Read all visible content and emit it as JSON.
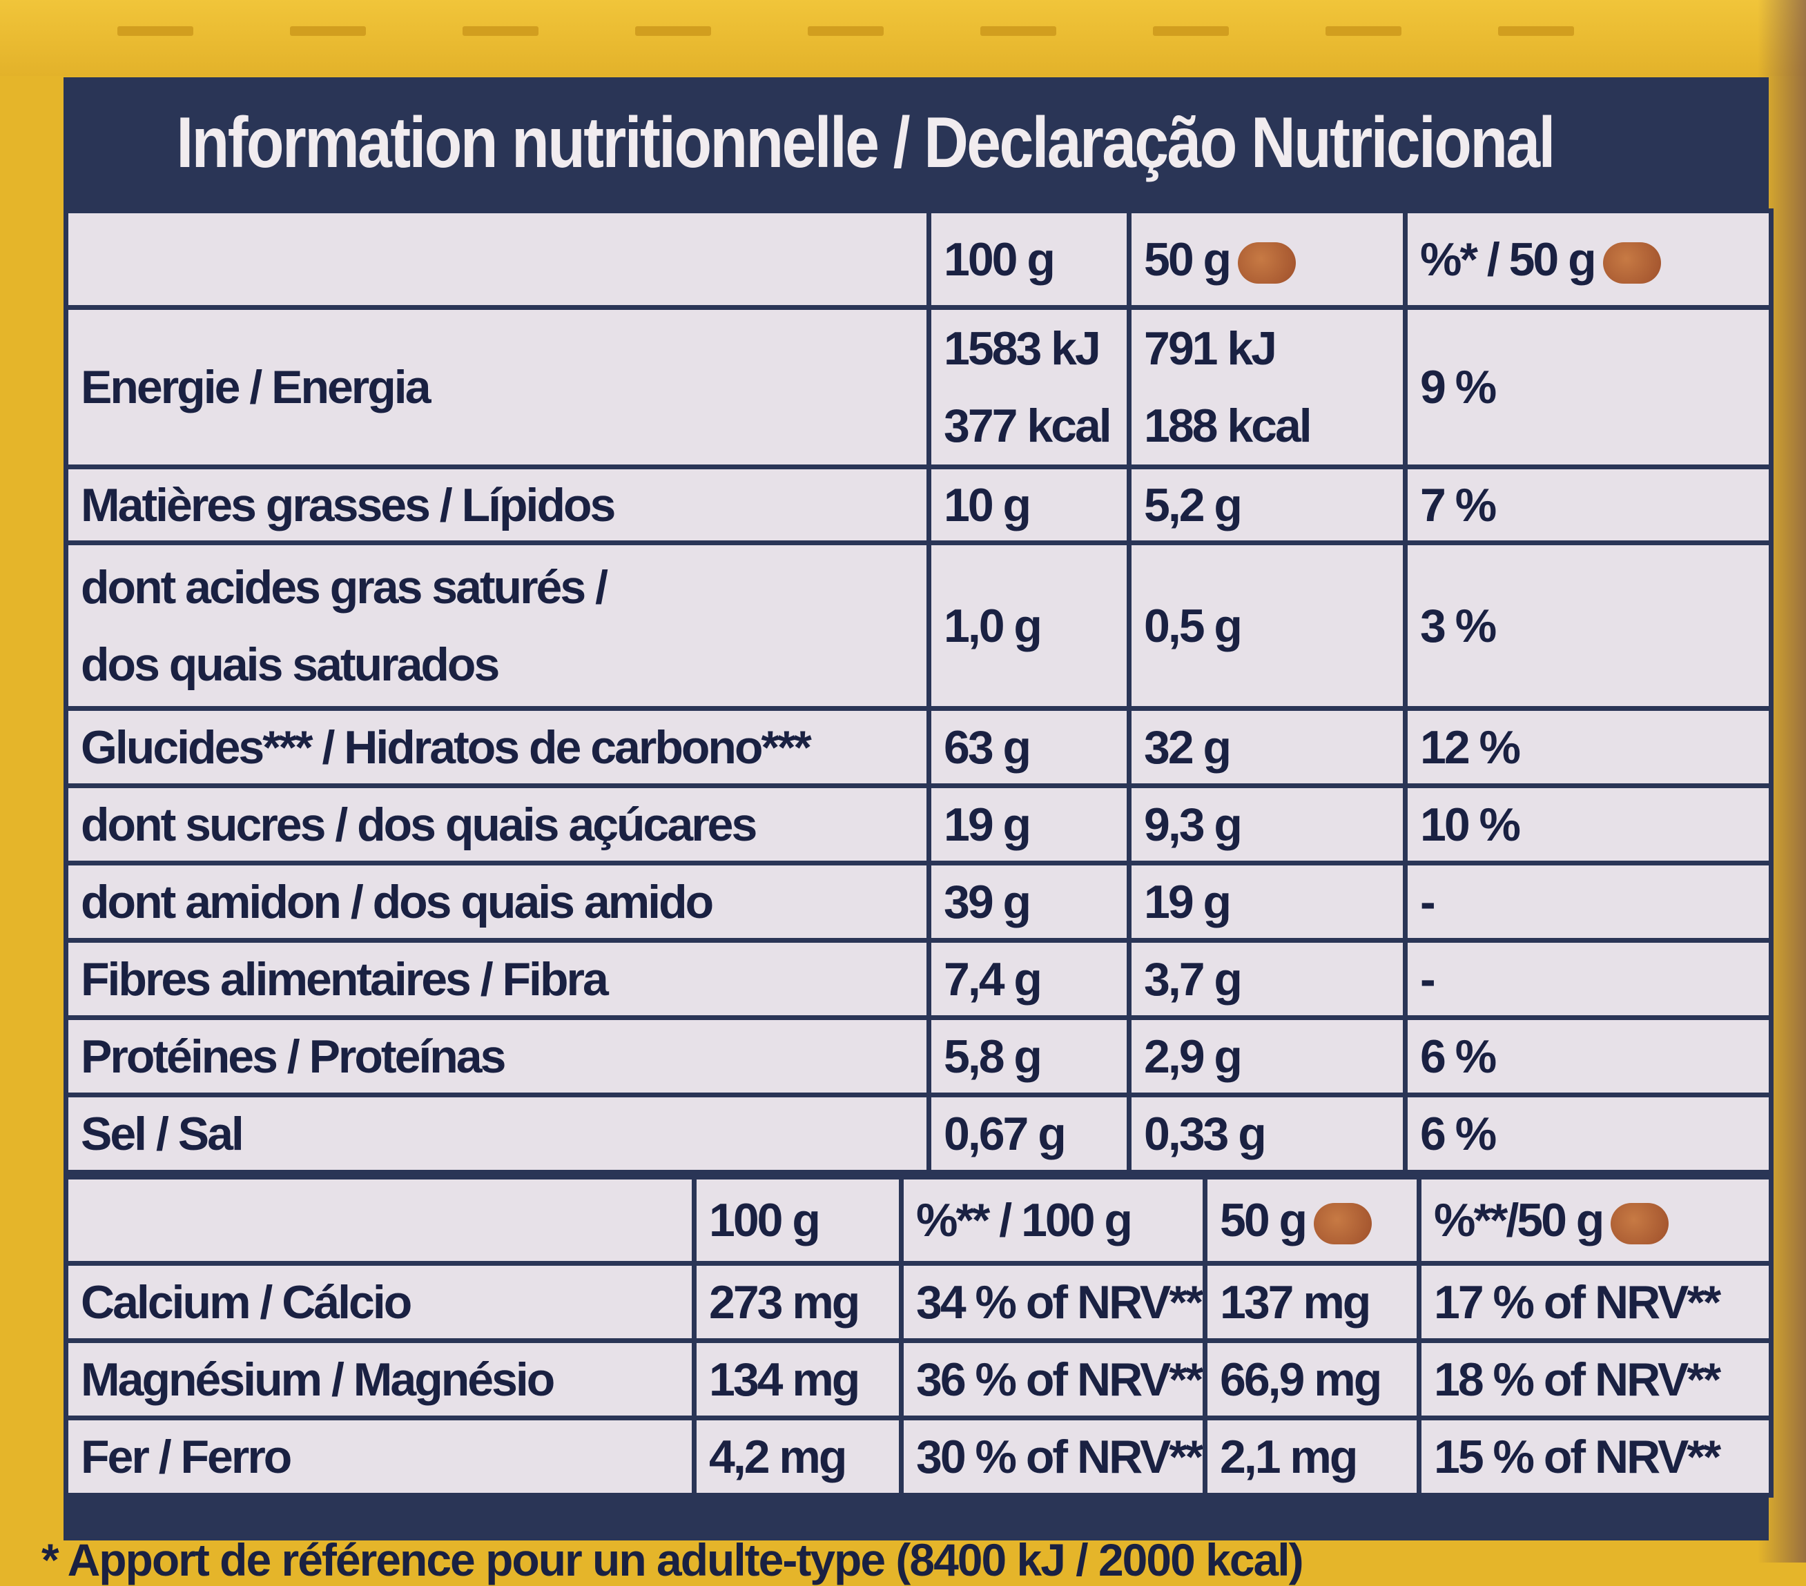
{
  "title": "Information nutritionnelle / Declaração Nutricional",
  "columns": {
    "per100": "100 g",
    "per50": "50 g",
    "pct50": "%* / 50 g"
  },
  "rows": [
    {
      "label": "Energie / Energia",
      "v100_line1": "1583 kJ",
      "v100_line2": "377 kcal",
      "v50_line1": "791 kJ",
      "v50_line2": "188 kcal",
      "pct": "9 %"
    },
    {
      "label": "Matières grasses / Lípidos",
      "v100": "10 g",
      "v50": "5,2 g",
      "pct": "7 %"
    },
    {
      "label_line1": "dont acides gras saturés /",
      "label_line2": "dos quais saturados",
      "v100": "1,0 g",
      "v50": "0,5 g",
      "pct": "3 %"
    },
    {
      "label": "Glucides*** / Hidratos de carbono***",
      "v100": "63 g",
      "v50": "32 g",
      "pct": "12 %"
    },
    {
      "label": "dont sucres / dos quais açúcares",
      "v100": "19 g",
      "v50": "9,3 g",
      "pct": "10 %"
    },
    {
      "label": "dont amidon / dos quais amido",
      "v100": "39 g",
      "v50": "19 g",
      "pct": "-"
    },
    {
      "label": "Fibres alimentaires / Fibra",
      "v100": "7,4 g",
      "v50": "3,7 g",
      "pct": "-"
    },
    {
      "label": "Protéines / Proteínas",
      "v100": "5,8 g",
      "v50": "2,9 g",
      "pct": "6 %"
    },
    {
      "label": "Sel / Sal",
      "v100": "0,67 g",
      "v50": "0,33 g",
      "pct": "6 %"
    }
  ],
  "minerals_columns": {
    "per100": "100 g",
    "pct100": "%** / 100 g",
    "per50": "50 g",
    "pct50": "%**/50 g"
  },
  "minerals": [
    {
      "label": "Calcium / Cálcio",
      "v100": "273 mg",
      "pct100": "34 % of NRV**",
      "v50": "137 mg",
      "pct50": "17 % of NRV**"
    },
    {
      "label": "Magnésium / Magnésio",
      "v100": "134 mg",
      "pct100": "36 % of NRV**",
      "v50": "66,9 mg",
      "pct50": "18 % of NRV**"
    },
    {
      "label": "Fer / Ferro",
      "v100": "4,2 mg",
      "pct100": "30 % of NRV**",
      "v50": "2,1 mg",
      "pct50": "15 % of NRV**"
    }
  ],
  "footnote": "* Apport de référence pour un adulte-type (8400 kJ / 2000 kcal)",
  "icons": {
    "serving": "biscuit-icon"
  },
  "colors": {
    "panel": "#2a3556",
    "cell": "#e7e1e8",
    "box": "#e5b52a",
    "biscuit": "#b0613a"
  }
}
